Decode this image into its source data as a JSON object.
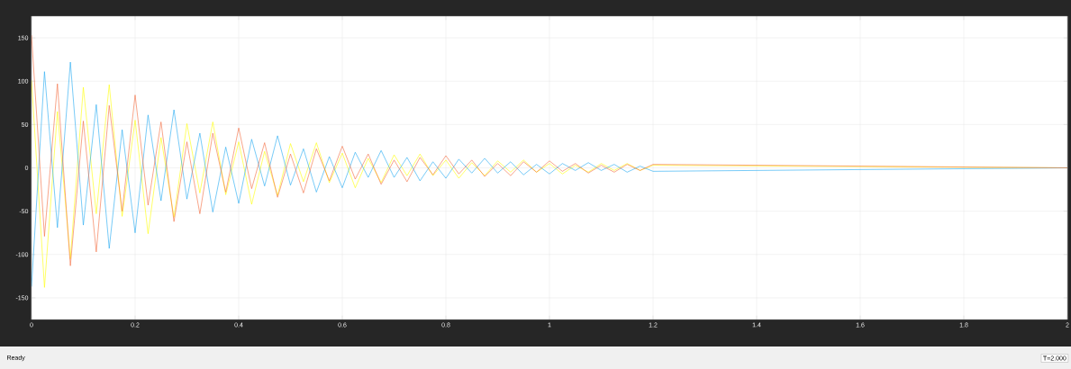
{
  "chart_data": {
    "type": "line",
    "x": [
      0,
      0.025,
      0.05,
      0.075,
      0.1,
      0.125,
      0.15,
      0.175,
      0.2,
      0.225,
      0.25,
      0.275,
      0.3,
      0.325,
      0.35,
      0.375,
      0.4,
      0.425,
      0.45,
      0.475,
      0.5,
      0.525,
      0.55,
      0.575,
      0.6,
      0.625,
      0.65,
      0.675,
      0.7,
      0.725,
      0.75,
      0.775,
      0.8,
      0.825,
      0.85,
      0.875,
      0.9,
      0.925,
      0.95,
      0.975,
      1.0,
      1.025,
      1.05,
      1.075,
      1.1,
      1.125,
      1.15,
      1.175,
      1.2,
      2
    ],
    "series": [
      {
        "color": "#ffff00",
        "values": [
          101,
          -138,
          65,
          -105,
          93,
          -53,
          96,
          -56,
          55,
          -76,
          35,
          -57,
          51,
          -29,
          53,
          -31,
          30,
          -42,
          19,
          -32,
          28,
          -16,
          29,
          -17,
          17,
          -23,
          11,
          -17,
          15,
          -9,
          16,
          -9,
          9,
          -12,
          6,
          -9,
          8,
          -5,
          9,
          -5,
          5,
          -7,
          3,
          -5,
          5,
          -3,
          5,
          -3,
          3,
          0
        ]
      },
      {
        "color": "#1ea7f2",
        "values": [
          -137,
          111,
          -69,
          122,
          -66,
          73,
          -93,
          44,
          -75,
          61,
          -38,
          67,
          -36,
          40,
          -51,
          24,
          -41,
          33,
          -21,
          37,
          -20,
          22,
          -28,
          13,
          -23,
          18,
          -11,
          20,
          -11,
          12,
          -15,
          7,
          -12,
          10,
          -6,
          11,
          -6,
          7,
          -8,
          4,
          -7,
          5,
          -3,
          6,
          -3,
          4,
          -5,
          2,
          -4,
          0
        ]
      },
      {
        "color": "#f4693c",
        "values": [
          153,
          -79,
          97,
          -113,
          54,
          -97,
          72,
          -50,
          84,
          -43,
          53,
          -62,
          30,
          -53,
          40,
          -28,
          46,
          -24,
          29,
          -34,
          16,
          -29,
          22,
          -15,
          25,
          -13,
          16,
          -19,
          9,
          -16,
          12,
          -8,
          14,
          -7,
          9,
          -10,
          5,
          -9,
          7,
          -5,
          8,
          -4,
          5,
          -6,
          3,
          -5,
          4,
          -3,
          4,
          0
        ]
      }
    ],
    "xlim": [
      0,
      2
    ],
    "ylim": [
      -175,
      175
    ],
    "xticks": [
      0,
      0.2,
      0.4,
      0.6,
      0.8,
      1,
      1.2,
      1.4,
      1.6,
      1.8,
      2
    ],
    "yticks": [
      -150,
      -100,
      -50,
      0,
      50,
      100,
      150
    ],
    "grid": true,
    "annotations": [
      "Ready",
      "T=2.000"
    ]
  }
}
